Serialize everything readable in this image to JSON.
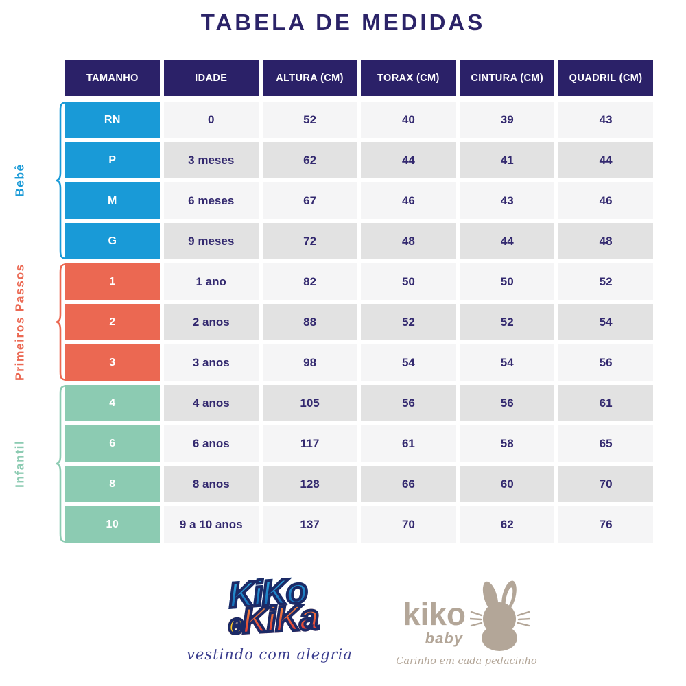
{
  "title": "TABELA DE MEDIDAS",
  "colors": {
    "navy_title": "#2B2368",
    "navy_header": "#2B2168",
    "navy_text": "#33296F",
    "row_light": "#F5F5F6",
    "row_dark": "#E2E2E2",
    "blue": "#199AD7",
    "coral": "#EB6852",
    "mint": "#8CCBB2",
    "taupe": "#B3A698",
    "script_navy": "#3C3F8F",
    "logo_outline": "#1C2A66",
    "logo_blue_1": "#2FA9E2",
    "logo_blue_2": "#1060AE",
    "logo_yellow": "#FFC20E",
    "logo_orange": "#F5913E",
    "logo_red": "#DF2B33"
  },
  "chart_data": {
    "type": "table",
    "title": "TABELA DE MEDIDAS",
    "columns": [
      "TAMANHO",
      "IDADE",
      "ALTURA (CM)",
      "TORAX (CM)",
      "CINTURA (CM)",
      "QUADRIL (CM)"
    ],
    "groups": [
      {
        "label": "Bebê",
        "color": "#199AD7",
        "rows": [
          [
            "RN",
            "0",
            "52",
            "40",
            "39",
            "43"
          ],
          [
            "P",
            "3 meses",
            "62",
            "44",
            "41",
            "44"
          ],
          [
            "M",
            "6 meses",
            "67",
            "46",
            "43",
            "46"
          ],
          [
            "G",
            "9 meses",
            "72",
            "48",
            "44",
            "48"
          ]
        ]
      },
      {
        "label": "Primeiros Passos",
        "color": "#EB6852",
        "rows": [
          [
            "1",
            "1 ano",
            "82",
            "50",
            "50",
            "52"
          ],
          [
            "2",
            "2 anos",
            "88",
            "52",
            "52",
            "54"
          ],
          [
            "3",
            "3 anos",
            "98",
            "54",
            "54",
            "56"
          ]
        ]
      },
      {
        "label": "Infantil",
        "color": "#8CCBB2",
        "rows": [
          [
            "4",
            "4 anos",
            "105",
            "56",
            "56",
            "61"
          ],
          [
            "6",
            "6 anos",
            "117",
            "61",
            "58",
            "65"
          ],
          [
            "8",
            "8 anos",
            "128",
            "66",
            "60",
            "70"
          ],
          [
            "10",
            "9 a 10 anos",
            "137",
            "70",
            "62",
            "76"
          ]
        ]
      }
    ]
  },
  "footer": {
    "kiko_kika": {
      "word1": "KiKo",
      "connector": "e",
      "word2": "KiKa",
      "tagline": "vestindo com alegria"
    },
    "kiko_baby": {
      "name": "kiko",
      "sub": "baby",
      "tagline": "Carinho em cada pedacinho",
      "icon": "bunny-icon"
    }
  }
}
